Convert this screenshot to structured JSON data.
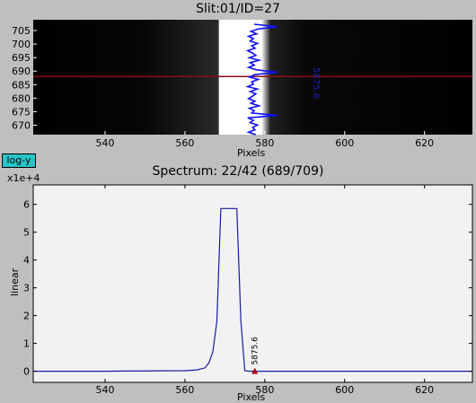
{
  "slit_panel": {
    "title": "Slit:01/ID=27",
    "xlabel": "Pixels",
    "x_ticks": [
      "540",
      "560",
      "580",
      "600",
      "620"
    ],
    "y_ticks": [
      "705",
      "700",
      "695",
      "690",
      "685",
      "680",
      "675",
      "670"
    ],
    "xlim": [
      522,
      632
    ],
    "ylim": [
      666.5,
      709
    ],
    "highlight_row": 688,
    "bright_band": [
      568.5,
      575.5
    ],
    "profile_label": "5875.6",
    "colors": {
      "background": "#000000",
      "profile": "#1010ff",
      "row_line": "#8a1010",
      "band": "#ffffff"
    }
  },
  "log_button": {
    "label": "log-y"
  },
  "spectrum_panel": {
    "title": "Spectrum: 22/42 (689/709)",
    "xlabel": "Pixels",
    "ylabel": "linear",
    "scale_label": "x1e+4",
    "marker_label": "5875.6",
    "colors": {
      "line": "#1a1aa0",
      "marker": "#b00000",
      "background": "#f2f2f5"
    }
  },
  "chart_data": {
    "type": "line",
    "xlabel": "Pixels",
    "ylabel": "linear",
    "xlim": [
      522,
      632
    ],
    "ylim": [
      -0.4,
      6.7
    ],
    "x_ticks": [
      "540",
      "560",
      "580",
      "600",
      "620"
    ],
    "y_ticks": [
      "6",
      "5",
      "4",
      "3",
      "2",
      "1",
      "0"
    ],
    "x": [
      522,
      540,
      560,
      563,
      565,
      566,
      567,
      568,
      569,
      570,
      571,
      572,
      573,
      574,
      575,
      576,
      632
    ],
    "y": [
      0,
      0,
      0.02,
      0.05,
      0.12,
      0.3,
      0.7,
      1.8,
      5.85,
      5.85,
      5.85,
      5.85,
      5.85,
      1.8,
      0.02,
      0,
      0
    ],
    "marker": {
      "x": 577.5,
      "y": 0,
      "label": "5875.6"
    }
  }
}
